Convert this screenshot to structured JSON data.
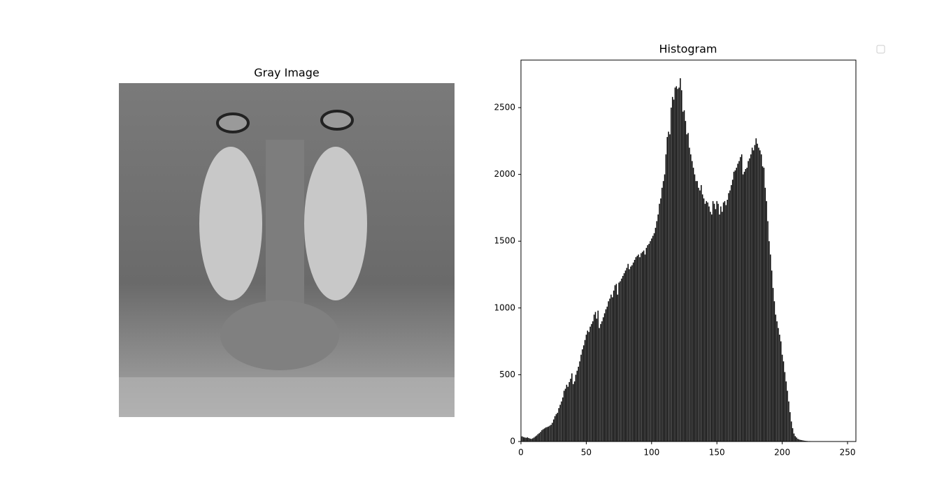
{
  "image": {
    "title": "Gray Image"
  },
  "chart_data": {
    "type": "bar",
    "title": "Histogram",
    "color": "#000000",
    "x": [
      0,
      1,
      2,
      3,
      4,
      5,
      6,
      7,
      8,
      9,
      10,
      11,
      12,
      13,
      14,
      15,
      16,
      17,
      18,
      19,
      20,
      21,
      22,
      23,
      24,
      25,
      26,
      27,
      28,
      29,
      30,
      31,
      32,
      33,
      34,
      35,
      36,
      37,
      38,
      39,
      40,
      41,
      42,
      43,
      44,
      45,
      46,
      47,
      48,
      49,
      50,
      51,
      52,
      53,
      54,
      55,
      56,
      57,
      58,
      59,
      60,
      61,
      62,
      63,
      64,
      65,
      66,
      67,
      68,
      69,
      70,
      71,
      72,
      73,
      74,
      75,
      76,
      77,
      78,
      79,
      80,
      81,
      82,
      83,
      84,
      85,
      86,
      87,
      88,
      89,
      90,
      91,
      92,
      93,
      94,
      95,
      96,
      97,
      98,
      99,
      100,
      101,
      102,
      103,
      104,
      105,
      106,
      107,
      108,
      109,
      110,
      111,
      112,
      113,
      114,
      115,
      116,
      117,
      118,
      119,
      120,
      121,
      122,
      123,
      124,
      125,
      126,
      127,
      128,
      129,
      130,
      131,
      132,
      133,
      134,
      135,
      136,
      137,
      138,
      139,
      140,
      141,
      142,
      143,
      144,
      145,
      146,
      147,
      148,
      149,
      150,
      151,
      152,
      153,
      154,
      155,
      156,
      157,
      158,
      159,
      160,
      161,
      162,
      163,
      164,
      165,
      166,
      167,
      168,
      169,
      170,
      171,
      172,
      173,
      174,
      175,
      176,
      177,
      178,
      179,
      180,
      181,
      182,
      183,
      184,
      185,
      186,
      187,
      188,
      189,
      190,
      191,
      192,
      193,
      194,
      195,
      196,
      197,
      198,
      199,
      200,
      201,
      202,
      203,
      204,
      205,
      206,
      207,
      208,
      209,
      210,
      211,
      212,
      213,
      214,
      215,
      216,
      217,
      218,
      219,
      220,
      221,
      222,
      223,
      224,
      225,
      226,
      227,
      228,
      229,
      230,
      231,
      232,
      233,
      234,
      235,
      236,
      237,
      238,
      239,
      240,
      241,
      242,
      243,
      244,
      245,
      246,
      247,
      248,
      249,
      250,
      251,
      252,
      253,
      254,
      255
    ],
    "values": [
      40,
      38,
      33,
      30,
      28,
      31,
      26,
      22,
      20,
      24,
      30,
      38,
      45,
      55,
      62,
      72,
      85,
      92,
      98,
      105,
      108,
      112,
      118,
      125,
      140,
      165,
      190,
      205,
      215,
      250,
      275,
      300,
      330,
      380,
      395,
      425,
      410,
      445,
      470,
      510,
      430,
      450,
      500,
      530,
      560,
      600,
      650,
      690,
      720,
      760,
      800,
      830,
      820,
      860,
      880,
      900,
      950,
      970,
      920,
      980,
      850,
      880,
      900,
      930,
      960,
      990,
      1010,
      1050,
      1070,
      1100,
      1080,
      1130,
      1170,
      1180,
      1100,
      1190,
      1200,
      1220,
      1240,
      1260,
      1280,
      1300,
      1330,
      1290,
      1310,
      1320,
      1340,
      1360,
      1380,
      1390,
      1400,
      1380,
      1410,
      1420,
      1430,
      1400,
      1450,
      1470,
      1480,
      1500,
      1520,
      1540,
      1560,
      1600,
      1650,
      1700,
      1780,
      1820,
      1900,
      1950,
      2000,
      2150,
      2280,
      2320,
      2300,
      2500,
      2580,
      2560,
      2650,
      2660,
      2640,
      2650,
      2720,
      2630,
      2470,
      2480,
      2400,
      2300,
      2310,
      2200,
      2150,
      2100,
      2050,
      2000,
      1950,
      1950,
      1900,
      1880,
      1920,
      1850,
      1820,
      1780,
      1800,
      1790,
      1760,
      1720,
      1700,
      1800,
      1780,
      1740,
      1800,
      1780,
      1700,
      1760,
      1720,
      1790,
      1800,
      1770,
      1810,
      1860,
      1880,
      1920,
      1960,
      2020,
      2030,
      2050,
      2080,
      2100,
      2130,
      2150,
      2000,
      2020,
      2040,
      2050,
      2100,
      2120,
      2150,
      2200,
      2180,
      2220,
      2270,
      2230,
      2200,
      2180,
      2150,
      2060,
      2050,
      1900,
      1800,
      1650,
      1500,
      1400,
      1280,
      1150,
      1050,
      950,
      900,
      850,
      800,
      750,
      650,
      600,
      520,
      450,
      380,
      300,
      220,
      150,
      100,
      60,
      40,
      30,
      20,
      15,
      12,
      10,
      8,
      6,
      5,
      4,
      3,
      3,
      2,
      2,
      2,
      1,
      1,
      1,
      1,
      1,
      1,
      1,
      1,
      1,
      0,
      0,
      0,
      0,
      0,
      0,
      0,
      0,
      0,
      0,
      0,
      0,
      0,
      0,
      0,
      0,
      0,
      0,
      0,
      0,
      0,
      0
    ],
    "xlim": [
      0,
      256.4
    ],
    "ylim": [
      0,
      2856
    ],
    "xticks": [
      0,
      50,
      100,
      150,
      200,
      250
    ],
    "yticks": [
      0,
      500,
      1000,
      1500,
      2000,
      2500
    ]
  }
}
